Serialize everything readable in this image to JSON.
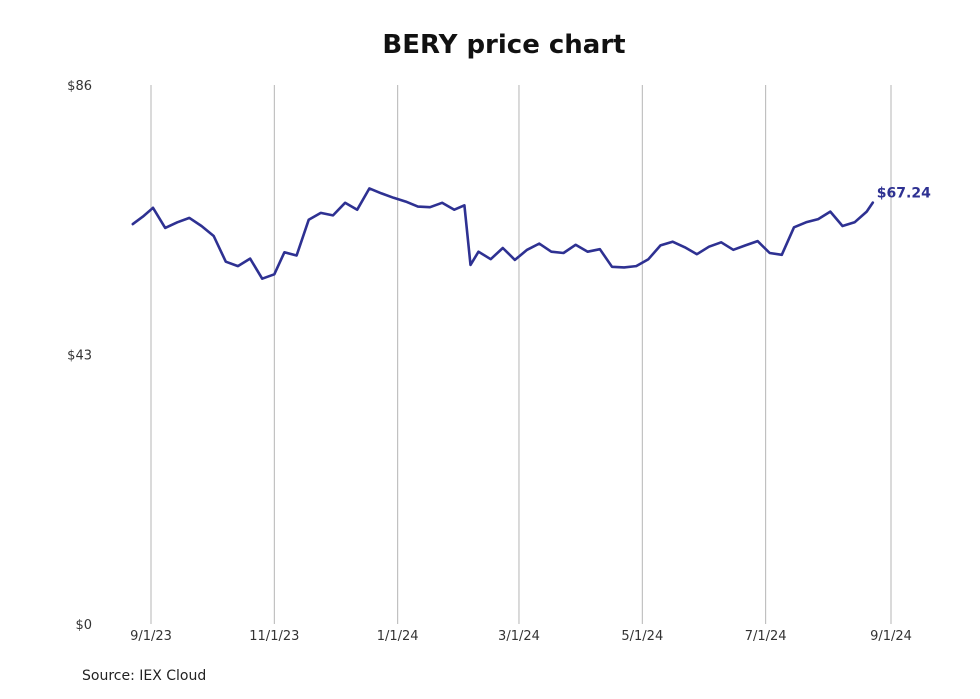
{
  "chart_data": {
    "type": "line",
    "title": "BERY price chart",
    "source": "Source: IEX Cloud",
    "ylim": [
      0,
      86
    ],
    "y_ticks": [
      {
        "value": 86,
        "label": "$86"
      },
      {
        "value": 43,
        "label": "$43"
      },
      {
        "value": 0,
        "label": "$0"
      }
    ],
    "x_ticks": [
      "9/1/23",
      "11/1/23",
      "1/1/24",
      "3/1/24",
      "5/1/24",
      "7/1/24",
      "9/1/24"
    ],
    "grid": "vertical",
    "legend": "none",
    "line_color": "#2e3192",
    "last_label": "$67.24",
    "series": [
      {
        "x": [
          "2023-08-23",
          "2023-08-28",
          "2023-09-02",
          "2023-09-08",
          "2023-09-14",
          "2023-09-20",
          "2023-09-26",
          "2023-10-02",
          "2023-10-08",
          "2023-10-14",
          "2023-10-20",
          "2023-10-26",
          "2023-11-01",
          "2023-11-06",
          "2023-11-12",
          "2023-11-18",
          "2023-11-24",
          "2023-11-30",
          "2023-12-06",
          "2023-12-12",
          "2023-12-18",
          "2023-12-24",
          "2023-12-30",
          "2024-01-05",
          "2024-01-11",
          "2024-01-17",
          "2024-01-23",
          "2024-01-29",
          "2024-02-03",
          "2024-02-06",
          "2024-02-10",
          "2024-02-16",
          "2024-02-22",
          "2024-02-28",
          "2024-03-05",
          "2024-03-11",
          "2024-03-17",
          "2024-03-23",
          "2024-03-29",
          "2024-04-04",
          "2024-04-10",
          "2024-04-16",
          "2024-04-22",
          "2024-04-28",
          "2024-05-04",
          "2024-05-10",
          "2024-05-16",
          "2024-05-22",
          "2024-05-28",
          "2024-06-03",
          "2024-06-09",
          "2024-06-15",
          "2024-06-21",
          "2024-06-27",
          "2024-07-03",
          "2024-07-09",
          "2024-07-15",
          "2024-07-21",
          "2024-07-27",
          "2024-08-02",
          "2024-08-08",
          "2024-08-14",
          "2024-08-20",
          "2024-08-23"
        ],
        "y": [
          63.8,
          65.0,
          66.4,
          63.2,
          64.1,
          64.8,
          63.5,
          61.9,
          57.8,
          57.1,
          58.3,
          55.1,
          55.8,
          59.3,
          58.8,
          64.5,
          65.6,
          65.2,
          67.2,
          66.1,
          69.5,
          68.7,
          68.0,
          67.4,
          66.6,
          66.5,
          67.2,
          66.1,
          66.8,
          57.3,
          59.4,
          58.2,
          60.0,
          58.1,
          59.7,
          60.7,
          59.4,
          59.2,
          60.5,
          59.4,
          59.8,
          57.0,
          56.9,
          57.1,
          58.2,
          60.4,
          61.0,
          60.1,
          59.0,
          60.2,
          60.9,
          59.7,
          60.4,
          61.1,
          59.2,
          58.9,
          63.3,
          64.1,
          64.6,
          65.8,
          63.5,
          64.1,
          65.8,
          67.24
        ]
      }
    ]
  }
}
